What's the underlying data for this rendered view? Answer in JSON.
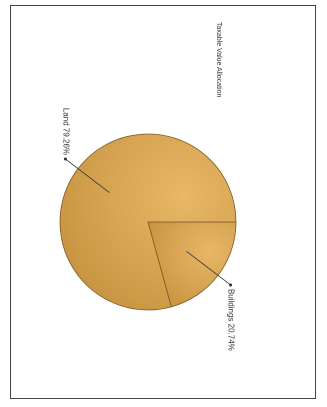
{
  "chart_data": {
    "type": "pie",
    "title": "Taxable Value Allocation",
    "slices": [
      {
        "name": "Buildings",
        "value": 20.74,
        "label": "Buildings 20.74%"
      },
      {
        "name": "Land",
        "value": 79.26,
        "label": "Land 79.26%"
      }
    ],
    "colors": {
      "slice_light": "#e8b866",
      "slice_dark": "#c4903e",
      "edge": "#7a5a24",
      "leader": "#333333"
    },
    "orientation": "rotated-90-clockwise"
  }
}
